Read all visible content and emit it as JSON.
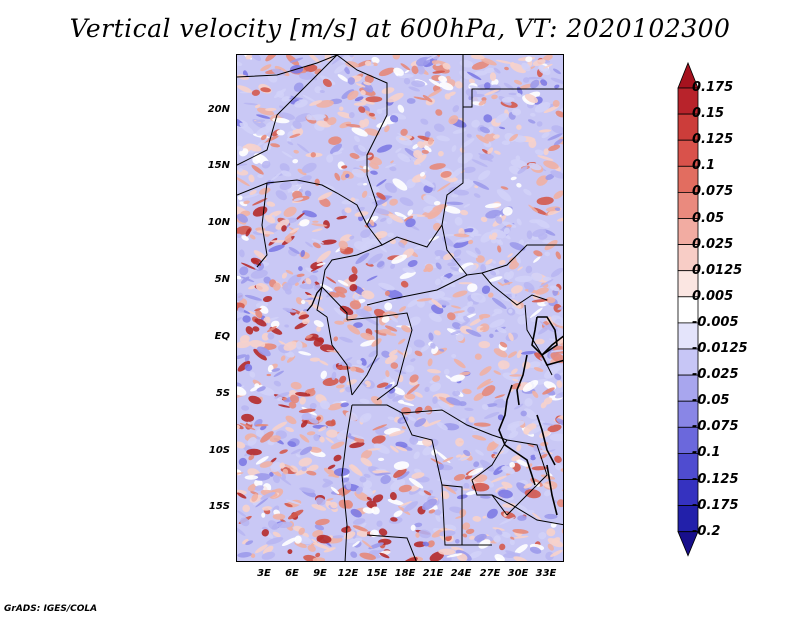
{
  "title": "Vertical velocity [m/s] at 600hPa, VT: 2020102300",
  "credit": "GrADS: IGES/COLA",
  "lat_labels": [
    "20N",
    "15N",
    "10N",
    "5N",
    "EQ",
    "5S",
    "10S",
    "15S"
  ],
  "lon_labels": [
    "3E",
    "6E",
    "9E",
    "12E",
    "15E",
    "18E",
    "21E",
    "24E",
    "27E",
    "30E",
    "33E"
  ],
  "colorbar": {
    "labels": [
      "0.175",
      "0.15",
      "0.125",
      "0.1",
      "0.075",
      "0.05",
      "0.025",
      "0.0125",
      "0.005",
      "-0.005",
      "-0.0125",
      "-0.025",
      "-0.05",
      "-0.075",
      "-0.1",
      "-0.125",
      "-0.175",
      "-0.2"
    ],
    "colors": [
      "#a5121e",
      "#b8232b",
      "#cc3d3a",
      "#d9524b",
      "#e26d60",
      "#ea8a7e",
      "#f2aca2",
      "#f8cdc6",
      "#fbe6e2",
      "#ffffff",
      "#e4e4fb",
      "#c7c6f6",
      "#a8a6ee",
      "#8986e6",
      "#6b68dc",
      "#4f4cd0",
      "#3532c0",
      "#2220aa",
      "#180f8c"
    ]
  },
  "field_palette": [
    "#d2d2f8",
    "#b8b6f2",
    "#9c9aeb",
    "#7d7ae4",
    "#ffffff",
    "#f7d2cb",
    "#f0b0a4",
    "#e5887a",
    "#d45a4e",
    "#b52a2a"
  ]
}
